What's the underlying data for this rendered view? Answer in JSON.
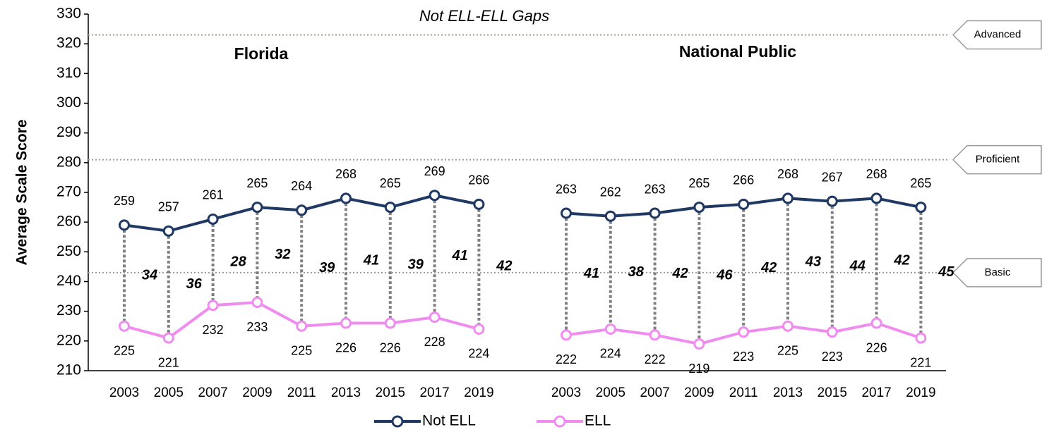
{
  "chart_data": {
    "type": "line",
    "title": "Not ELL-ELL Gaps",
    "ylabel": "Average Scale Score",
    "ylim": [
      210,
      330
    ],
    "yticks": [
      210,
      220,
      230,
      240,
      250,
      260,
      270,
      280,
      290,
      300,
      310,
      320,
      330
    ],
    "reference_lines": [
      {
        "label": "Advanced",
        "value": 323
      },
      {
        "label": "Proficient",
        "value": 281
      },
      {
        "label": "Basic",
        "value": 243
      }
    ],
    "legend": "bottom",
    "panels": [
      {
        "title": "Florida",
        "categories": [
          "2003",
          "2005",
          "2007",
          "2009",
          "2011",
          "2013",
          "2015",
          "2017",
          "2019"
        ],
        "series": [
          {
            "name": "Not ELL",
            "color": "#1f3864",
            "values": [
              259,
              257,
              261,
              265,
              264,
              268,
              265,
              269,
              266
            ]
          },
          {
            "name": "ELL",
            "color": "#f08cf0",
            "values": [
              225,
              221,
              232,
              233,
              225,
              226,
              226,
              228,
              224
            ]
          }
        ],
        "gaps": [
          34,
          36,
          28,
          32,
          39,
          41,
          39,
          41,
          42
        ]
      },
      {
        "title": "National Public",
        "categories": [
          "2003",
          "2005",
          "2007",
          "2009",
          "2011",
          "2013",
          "2015",
          "2017",
          "2019"
        ],
        "series": [
          {
            "name": "Not ELL",
            "color": "#1f3864",
            "values": [
              263,
              262,
              263,
              265,
              266,
              268,
              267,
              268,
              265
            ]
          },
          {
            "name": "ELL",
            "color": "#f08cf0",
            "values": [
              222,
              224,
              222,
              219,
              223,
              225,
              223,
              226,
              221
            ]
          }
        ],
        "gaps": [
          41,
          38,
          42,
          46,
          42,
          43,
          44,
          42,
          45
        ]
      }
    ]
  }
}
